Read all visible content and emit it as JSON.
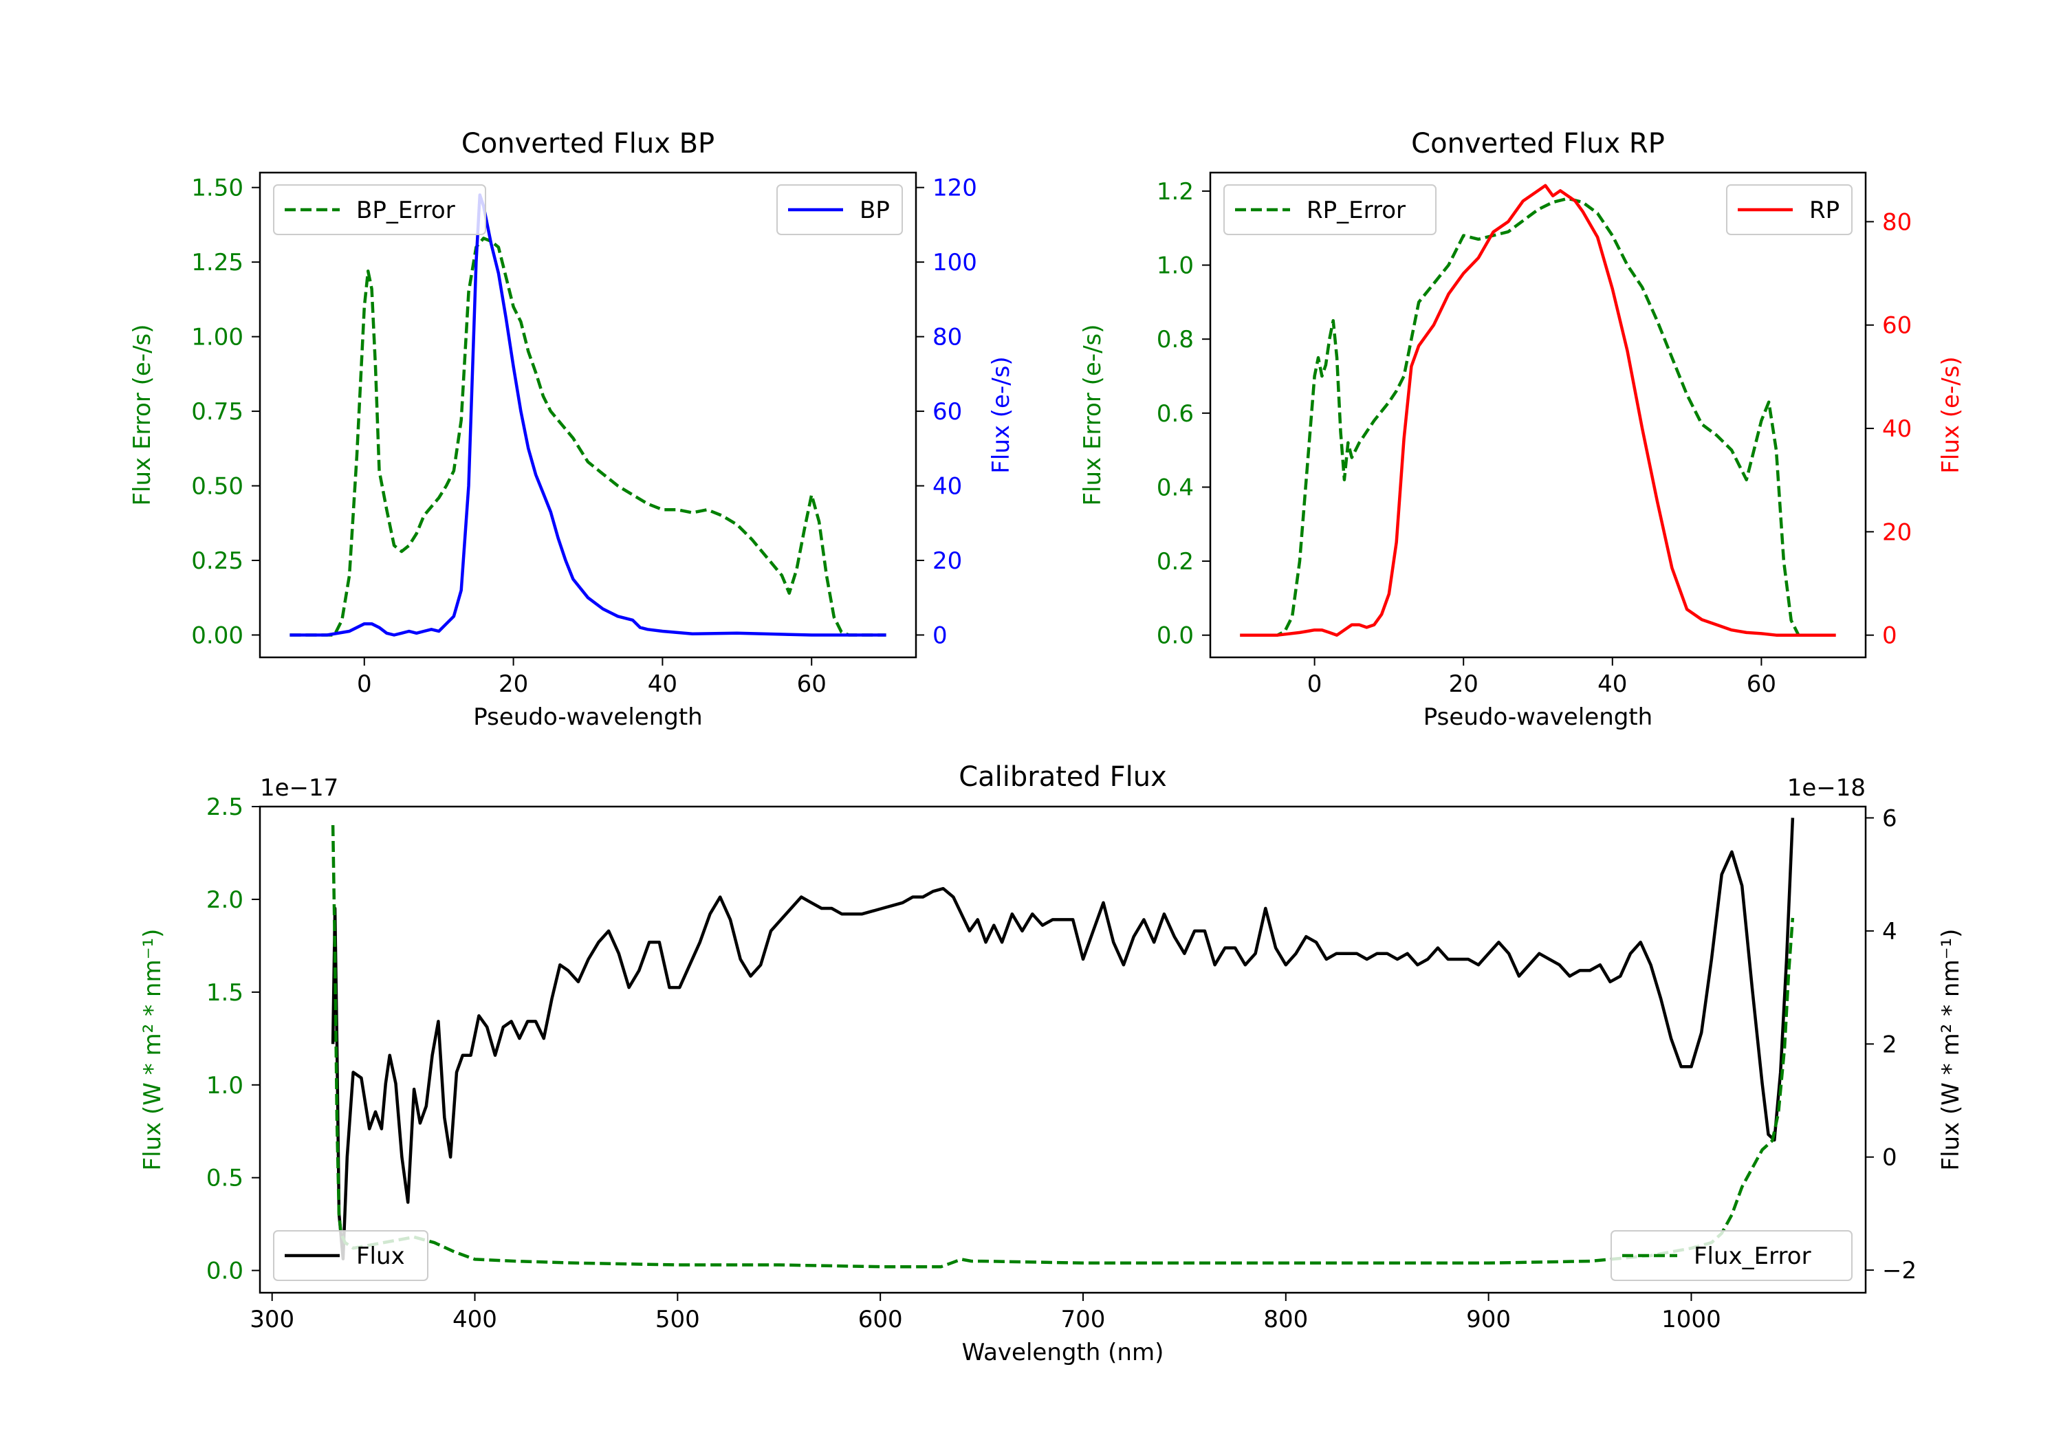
{
  "chart_data": [
    {
      "id": "bp",
      "type": "line",
      "title": "Converted Flux BP",
      "xlabel": "Pseudo-wavelength",
      "ylabel_left": "Flux Error (e-/s)",
      "ylabel_right": "Flux (e-/s)",
      "xlim": [
        -14,
        74
      ],
      "ylim_left": [
        -0.075,
        1.55
      ],
      "ylim_right": [
        -6,
        124
      ],
      "xticks": [
        0,
        20,
        40,
        60
      ],
      "yticks_left": [
        0.0,
        0.25,
        0.5,
        0.75,
        1.0,
        1.25,
        1.5
      ],
      "yticks_left_labels": [
        "0.00",
        "0.25",
        "0.50",
        "0.75",
        "1.00",
        "1.25",
        "1.50"
      ],
      "yticks_right": [
        0,
        20,
        40,
        60,
        80,
        100,
        120
      ],
      "left_color": "#008000",
      "right_color": "#0000ff",
      "legend_left": {
        "label": "BP_Error",
        "position": "upper left"
      },
      "legend_right": {
        "label": "BP",
        "position": "upper right"
      },
      "series": [
        {
          "name": "BP_Error",
          "axis": "left",
          "style": "dashed",
          "color": "#008000",
          "x": [
            -10,
            -4,
            -3,
            -2,
            -1,
            0,
            0.5,
            1,
            1.5,
            2,
            3,
            4,
            5,
            6,
            7,
            8,
            9,
            10,
            11,
            12,
            13,
            14,
            15,
            16,
            17,
            18,
            19,
            20,
            21,
            22,
            23,
            24,
            25,
            26,
            28,
            30,
            32,
            34,
            36,
            38,
            40,
            42,
            44,
            46,
            48,
            50,
            52,
            54,
            56,
            57,
            58,
            59,
            60,
            61,
            62,
            63,
            64,
            65,
            70
          ],
          "y": [
            0,
            0,
            0.05,
            0.2,
            0.6,
            1.1,
            1.22,
            1.16,
            0.9,
            0.55,
            0.42,
            0.3,
            0.28,
            0.3,
            0.34,
            0.4,
            0.43,
            0.46,
            0.5,
            0.55,
            0.72,
            1.15,
            1.3,
            1.33,
            1.32,
            1.3,
            1.2,
            1.1,
            1.05,
            0.95,
            0.88,
            0.8,
            0.75,
            0.72,
            0.66,
            0.58,
            0.54,
            0.5,
            0.47,
            0.44,
            0.42,
            0.42,
            0.41,
            0.42,
            0.4,
            0.37,
            0.32,
            0.26,
            0.2,
            0.14,
            0.22,
            0.35,
            0.47,
            0.38,
            0.2,
            0.06,
            0.01,
            0,
            0
          ]
        },
        {
          "name": "BP",
          "axis": "right",
          "style": "solid",
          "color": "#0000ff",
          "x": [
            -10,
            -5,
            -2,
            0,
            1,
            2,
            3,
            4,
            5,
            6,
            7,
            8,
            9,
            10,
            11,
            12,
            13,
            14,
            15,
            15.5,
            16,
            17,
            18,
            19,
            20,
            21,
            22,
            23,
            24,
            25,
            26,
            27,
            28,
            30,
            32,
            34,
            36,
            37,
            38,
            40,
            44,
            50,
            60,
            70
          ],
          "y": [
            0,
            0,
            1,
            3,
            3,
            2,
            0.5,
            0,
            0.5,
            1,
            0.5,
            1,
            1.5,
            1,
            3,
            5,
            12,
            40,
            100,
            118,
            115,
            105,
            97,
            85,
            72,
            60,
            50,
            43,
            38,
            33,
            26,
            20,
            15,
            10,
            7,
            5,
            4,
            2,
            1.5,
            1,
            0.3,
            0.5,
            0,
            0
          ]
        }
      ]
    },
    {
      "id": "rp",
      "type": "line",
      "title": "Converted Flux RP",
      "xlabel": "Pseudo-wavelength",
      "ylabel_left": "Flux Error (e-/s)",
      "ylabel_right": "Flux (e-/s)",
      "xlim": [
        -14,
        74
      ],
      "ylim_left": [
        -0.06,
        1.25
      ],
      "ylim_right": [
        -4.3,
        89.5
      ],
      "xticks": [
        0,
        20,
        40,
        60
      ],
      "yticks_left": [
        0.0,
        0.2,
        0.4,
        0.6,
        0.8,
        1.0,
        1.2
      ],
      "yticks_left_labels": [
        "0.0",
        "0.2",
        "0.4",
        "0.6",
        "0.8",
        "1.0",
        "1.2"
      ],
      "yticks_right": [
        0,
        20,
        40,
        60,
        80
      ],
      "left_color": "#008000",
      "right_color": "#ff0000",
      "legend_left": {
        "label": "RP_Error",
        "position": "upper left"
      },
      "legend_right": {
        "label": "RP",
        "position": "upper right"
      },
      "series": [
        {
          "name": "RP_Error",
          "axis": "left",
          "style": "dashed",
          "color": "#008000",
          "x": [
            -10,
            -5,
            -4,
            -3,
            -2,
            -1,
            0,
            0.5,
            1,
            1.5,
            2,
            2.5,
            3,
            3.5,
            4,
            4.5,
            5,
            6,
            8,
            10,
            11,
            12,
            13,
            14,
            16,
            18,
            20,
            22,
            24,
            26,
            28,
            30,
            32,
            34,
            36,
            38,
            40,
            42,
            44,
            46,
            48,
            50,
            52,
            54,
            56,
            57,
            58,
            59,
            60,
            61,
            62,
            63,
            64,
            65,
            66,
            70
          ],
          "y": [
            0,
            0,
            0.01,
            0.05,
            0.2,
            0.45,
            0.7,
            0.75,
            0.7,
            0.73,
            0.8,
            0.85,
            0.75,
            0.55,
            0.42,
            0.52,
            0.48,
            0.52,
            0.58,
            0.63,
            0.66,
            0.7,
            0.8,
            0.9,
            0.95,
            1.0,
            1.08,
            1.07,
            1.08,
            1.09,
            1.12,
            1.15,
            1.17,
            1.18,
            1.17,
            1.14,
            1.08,
            1.0,
            0.94,
            0.85,
            0.75,
            0.65,
            0.57,
            0.54,
            0.5,
            0.46,
            0.42,
            0.5,
            0.58,
            0.63,
            0.5,
            0.2,
            0.04,
            0,
            0,
            0
          ]
        },
        {
          "name": "RP",
          "axis": "right",
          "style": "solid",
          "color": "#ff0000",
          "x": [
            -10,
            -5,
            -2,
            0,
            1,
            2,
            3,
            4,
            5,
            6,
            7,
            8,
            9,
            10,
            11,
            12,
            13,
            14,
            16,
            18,
            20,
            22,
            24,
            26,
            28,
            30,
            31,
            32,
            33,
            34,
            35,
            36,
            38,
            40,
            42,
            44,
            46,
            48,
            50,
            52,
            54,
            56,
            58,
            60,
            62,
            64,
            70
          ],
          "y": [
            0,
            0,
            0.5,
            1,
            1,
            0.5,
            0,
            1,
            2,
            2,
            1.5,
            2,
            4,
            8,
            18,
            38,
            52,
            56,
            60,
            66,
            70,
            73,
            78,
            80,
            84,
            86,
            87,
            85,
            86,
            85,
            84,
            82,
            77,
            67,
            55,
            40,
            26,
            13,
            5,
            3,
            2,
            1,
            0.5,
            0.3,
            0,
            0,
            0
          ]
        }
      ]
    },
    {
      "id": "cal",
      "type": "line",
      "title": "Calibrated Flux",
      "xlabel": "Wavelength (nm)",
      "ylabel_left": "Flux (W * m² * nm⁻¹)",
      "ylabel_right": "Flux (W * m² * nm⁻¹)",
      "offset_left": "1e−17",
      "offset_right": "1e−18",
      "xlim": [
        294,
        1086
      ],
      "ylim_left": [
        -0.12,
        2.5
      ],
      "ylim_right": [
        -2.4,
        6.2
      ],
      "xticks": [
        300,
        400,
        500,
        600,
        700,
        800,
        900,
        1000
      ],
      "yticks_left": [
        0.0,
        0.5,
        1.0,
        1.5,
        2.0,
        2.5
      ],
      "yticks_left_labels": [
        "0.0",
        "0.5",
        "1.0",
        "1.5",
        "2.0",
        "2.5"
      ],
      "yticks_right": [
        -2,
        0,
        2,
        4,
        6
      ],
      "yticks_right_labels": [
        "−2",
        "0",
        "2",
        "4",
        "6"
      ],
      "left_color": "#008000",
      "right_color": "#000000",
      "legend_left": {
        "label": "Flux",
        "position": "lower left"
      },
      "legend_right": {
        "label": "Flux_Error",
        "position": "lower right"
      },
      "series": [
        {
          "name": "Flux",
          "axis": "right",
          "style": "solid",
          "color": "#000000",
          "x": [
            330,
            331,
            332,
            333,
            335,
            337,
            340,
            344,
            348,
            351,
            354,
            356,
            358,
            361,
            364,
            367,
            370,
            373,
            376,
            379,
            382,
            385,
            388,
            391,
            394,
            398,
            402,
            406,
            410,
            414,
            418,
            422,
            426,
            430,
            434,
            438,
            442,
            446,
            451,
            456,
            461,
            466,
            471,
            476,
            481,
            486,
            491,
            496,
            501,
            506,
            511,
            516,
            521,
            526,
            531,
            536,
            541,
            546,
            551,
            556,
            561,
            566,
            571,
            576,
            581,
            586,
            591,
            596,
            601,
            606,
            611,
            616,
            621,
            626,
            631,
            636,
            640,
            644,
            648,
            652,
            656,
            660,
            665,
            670,
            675,
            680,
            685,
            690,
            695,
            700,
            705,
            710,
            715,
            720,
            725,
            730,
            735,
            740,
            745,
            750,
            755,
            760,
            765,
            770,
            775,
            780,
            785,
            790,
            795,
            800,
            805,
            810,
            815,
            820,
            825,
            830,
            835,
            840,
            845,
            850,
            855,
            860,
            865,
            870,
            875,
            880,
            885,
            890,
            895,
            900,
            905,
            910,
            915,
            920,
            925,
            930,
            935,
            940,
            945,
            950,
            955,
            960,
            965,
            970,
            975,
            980,
            985,
            990,
            995,
            1000,
            1005,
            1010,
            1015,
            1020,
            1025,
            1030,
            1035,
            1038,
            1041,
            1044,
            1047,
            1050
          ],
          "y": [
            2,
            4.4,
            2,
            -1,
            -1.8,
            0,
            1.5,
            1.4,
            0.5,
            0.8,
            0.5,
            1.3,
            1.8,
            1.3,
            0,
            -0.8,
            1.2,
            0.6,
            0.9,
            1.8,
            2.4,
            0.7,
            0,
            1.5,
            1.8,
            1.8,
            2.5,
            2.3,
            1.8,
            2.3,
            2.4,
            2.1,
            2.4,
            2.4,
            2.1,
            2.8,
            3.4,
            3.3,
            3.1,
            3.5,
            3.8,
            4.0,
            3.6,
            3.0,
            3.3,
            3.8,
            3.8,
            3.0,
            3.0,
            3.4,
            3.8,
            4.3,
            4.6,
            4.2,
            3.5,
            3.2,
            3.4,
            4.0,
            4.2,
            4.4,
            4.6,
            4.5,
            4.4,
            4.4,
            4.3,
            4.3,
            4.3,
            4.35,
            4.4,
            4.45,
            4.5,
            4.6,
            4.6,
            4.7,
            4.75,
            4.6,
            4.3,
            4.0,
            4.2,
            3.8,
            4.1,
            3.8,
            4.3,
            4.0,
            4.3,
            4.1,
            4.2,
            4.2,
            4.2,
            3.5,
            4.0,
            4.5,
            3.8,
            3.4,
            3.9,
            4.2,
            3.8,
            4.3,
            3.9,
            3.6,
            4.0,
            4.0,
            3.4,
            3.7,
            3.7,
            3.4,
            3.6,
            4.4,
            3.7,
            3.4,
            3.6,
            3.9,
            3.8,
            3.5,
            3.6,
            3.6,
            3.6,
            3.5,
            3.6,
            3.6,
            3.5,
            3.6,
            3.4,
            3.5,
            3.7,
            3.5,
            3.5,
            3.5,
            3.4,
            3.6,
            3.8,
            3.6,
            3.2,
            3.4,
            3.6,
            3.5,
            3.4,
            3.2,
            3.3,
            3.3,
            3.4,
            3.1,
            3.2,
            3.6,
            3.8,
            3.4,
            2.8,
            2.1,
            1.6,
            1.6,
            2.2,
            3.5,
            5.0,
            5.4,
            4.8,
            3.0,
            1.3,
            0.4,
            0.3,
            1.5,
            3.5,
            6.0
          ]
        },
        {
          "name": "Flux_Error",
          "axis": "left",
          "style": "dashed",
          "color": "#008000",
          "x": [
            330,
            331,
            332,
            333,
            334,
            336,
            340,
            350,
            360,
            370,
            380,
            390,
            400,
            420,
            450,
            500,
            550,
            600,
            630,
            635,
            640,
            645,
            650,
            700,
            750,
            800,
            850,
            900,
            950,
            980,
            1000,
            1010,
            1015,
            1020,
            1025,
            1030,
            1035,
            1040,
            1043,
            1046,
            1048,
            1050
          ],
          "y": [
            2.4,
            1.7,
            0.8,
            0.3,
            0.2,
            0.15,
            0.12,
            0.14,
            0.16,
            0.18,
            0.15,
            0.1,
            0.06,
            0.05,
            0.04,
            0.03,
            0.03,
            0.02,
            0.02,
            0.04,
            0.06,
            0.05,
            0.05,
            0.04,
            0.04,
            0.04,
            0.04,
            0.04,
            0.05,
            0.08,
            0.12,
            0.15,
            0.2,
            0.3,
            0.45,
            0.55,
            0.65,
            0.7,
            0.85,
            1.2,
            1.6,
            1.9
          ]
        }
      ]
    }
  ]
}
